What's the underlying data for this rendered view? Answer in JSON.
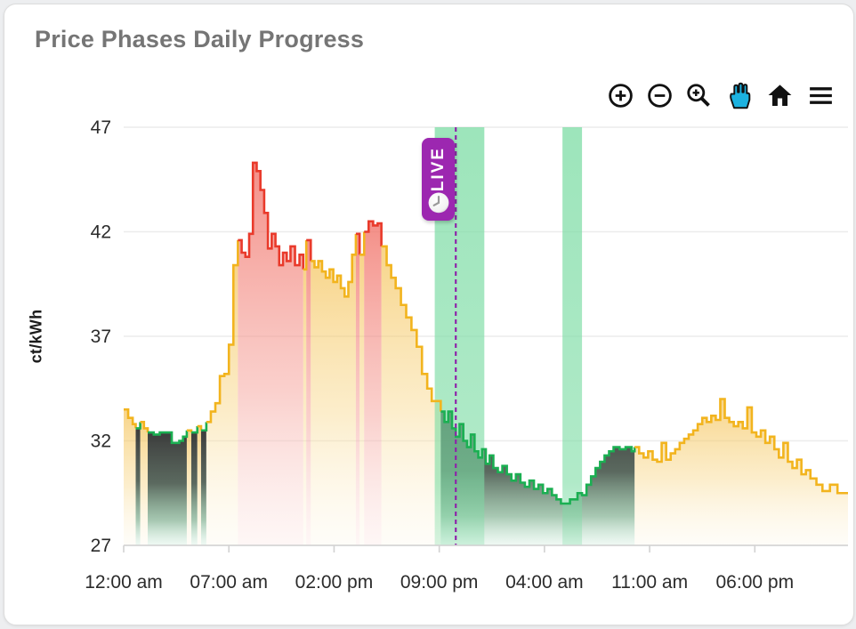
{
  "card": {
    "title": "Price Phases Daily Progress"
  },
  "toolbar": {
    "buttons": [
      {
        "name": "zoom-in"
      },
      {
        "name": "zoom-out"
      },
      {
        "name": "box-zoom"
      },
      {
        "name": "pan",
        "active": true
      },
      {
        "name": "reset-home"
      },
      {
        "name": "menu"
      }
    ]
  },
  "colors": {
    "title_gray": "#757575",
    "normal": "#F2B41E",
    "expensive": "#E93A2B",
    "cheap": "#1BAF52",
    "band_green": "#7CDCA4",
    "live_line": "#8E24AA",
    "badge_purple": "#9C27B0",
    "icon_black": "#111111",
    "pan_active_blue": "#1CB2E0",
    "grid": "#ececec",
    "axis": "#d2d2d2",
    "tick_text": "#2b2b2b"
  },
  "live": {
    "label": "LIVE",
    "t": 22.1
  },
  "chart_data": {
    "type": "area",
    "subtype": "step-phase-area",
    "title": "Price Phases Daily Progress",
    "xlabel": "",
    "ylabel": "ct/kWh",
    "ylim": [
      27,
      47
    ],
    "xlim_hours": [
      0,
      48.2
    ],
    "grid": true,
    "legend": "none",
    "y_ticks": [
      47,
      42,
      37,
      32,
      27
    ],
    "x_ticks": [
      {
        "t": 0,
        "label": "12:00 am"
      },
      {
        "t": 7,
        "label": "07:00 am"
      },
      {
        "t": 14,
        "label": "02:00 pm"
      },
      {
        "t": 21,
        "label": "09:00 pm"
      },
      {
        "t": 28,
        "label": "04:00 am"
      },
      {
        "t": 35,
        "label": "11:00 am"
      },
      {
        "t": 42,
        "label": "06:00 pm"
      }
    ],
    "phases": {
      "n": "normal",
      "e": "expensive",
      "c": "cheap"
    },
    "highlight_windows_hours": [
      {
        "start": 20.7,
        "end": 24.0
      },
      {
        "start": 29.2,
        "end": 30.5
      }
    ],
    "series_units": "[hour_of_window, ct_per_kWh, phase]",
    "series": [
      [
        0.0,
        33.5,
        "n"
      ],
      [
        0.3,
        33.1,
        "n"
      ],
      [
        0.6,
        32.8,
        "n"
      ],
      [
        0.8,
        32.6,
        "c"
      ],
      [
        1.1,
        32.9,
        "n"
      ],
      [
        1.35,
        32.6,
        "n"
      ],
      [
        1.6,
        32.4,
        "c"
      ],
      [
        2.0,
        32.3,
        "c"
      ],
      [
        2.4,
        32.4,
        "c"
      ],
      [
        2.8,
        32.4,
        "c"
      ],
      [
        3.2,
        31.9,
        "c"
      ],
      [
        3.7,
        32.0,
        "c"
      ],
      [
        3.95,
        32.2,
        "c"
      ],
      [
        4.2,
        32.5,
        "n"
      ],
      [
        4.5,
        32.4,
        "c"
      ],
      [
        4.9,
        32.7,
        "n"
      ],
      [
        5.15,
        32.5,
        "c"
      ],
      [
        5.5,
        32.9,
        "n"
      ],
      [
        5.8,
        33.4,
        "n"
      ],
      [
        6.1,
        33.8,
        "n"
      ],
      [
        6.4,
        35.1,
        "n"
      ],
      [
        6.7,
        35.2,
        "n"
      ],
      [
        7.0,
        36.6,
        "n"
      ],
      [
        7.3,
        40.4,
        "n"
      ],
      [
        7.6,
        41.6,
        "e"
      ],
      [
        7.85,
        41.0,
        "e"
      ],
      [
        8.1,
        40.8,
        "e"
      ],
      [
        8.35,
        41.9,
        "e"
      ],
      [
        8.6,
        45.3,
        "e"
      ],
      [
        8.85,
        44.9,
        "e"
      ],
      [
        9.1,
        44.0,
        "e"
      ],
      [
        9.35,
        42.9,
        "e"
      ],
      [
        9.6,
        41.2,
        "e"
      ],
      [
        9.85,
        41.9,
        "e"
      ],
      [
        10.1,
        41.3,
        "e"
      ],
      [
        10.35,
        40.4,
        "e"
      ],
      [
        10.6,
        41.0,
        "e"
      ],
      [
        10.85,
        40.6,
        "e"
      ],
      [
        11.1,
        41.3,
        "e"
      ],
      [
        11.4,
        40.4,
        "e"
      ],
      [
        11.7,
        40.9,
        "e"
      ],
      [
        11.95,
        40.2,
        "n"
      ],
      [
        12.15,
        41.6,
        "e"
      ],
      [
        12.45,
        40.6,
        "n"
      ],
      [
        12.7,
        40.3,
        "n"
      ],
      [
        12.95,
        40.6,
        "n"
      ],
      [
        13.2,
        40.1,
        "n"
      ],
      [
        13.45,
        39.8,
        "n"
      ],
      [
        13.7,
        40.2,
        "n"
      ],
      [
        13.95,
        39.6,
        "n"
      ],
      [
        14.2,
        39.9,
        "n"
      ],
      [
        14.45,
        39.3,
        "n"
      ],
      [
        14.7,
        38.9,
        "n"
      ],
      [
        14.95,
        39.6,
        "n"
      ],
      [
        15.2,
        40.9,
        "n"
      ],
      [
        15.45,
        41.9,
        "e"
      ],
      [
        15.7,
        40.9,
        "n"
      ],
      [
        16.0,
        42.0,
        "e"
      ],
      [
        16.3,
        42.5,
        "e"
      ],
      [
        16.6,
        42.3,
        "e"
      ],
      [
        16.9,
        42.4,
        "e"
      ],
      [
        17.15,
        41.3,
        "n"
      ],
      [
        17.5,
        40.4,
        "n"
      ],
      [
        17.8,
        39.8,
        "n"
      ],
      [
        18.1,
        39.3,
        "n"
      ],
      [
        18.45,
        38.5,
        "n"
      ],
      [
        18.8,
        37.9,
        "n"
      ],
      [
        19.15,
        37.3,
        "n"
      ],
      [
        19.5,
        36.5,
        "n"
      ],
      [
        19.85,
        35.2,
        "n"
      ],
      [
        20.2,
        34.5,
        "n"
      ],
      [
        20.5,
        33.9,
        "n"
      ],
      [
        21.1,
        33.4,
        "c"
      ],
      [
        21.35,
        32.9,
        "c"
      ],
      [
        21.6,
        33.4,
        "c"
      ],
      [
        21.85,
        32.6,
        "c"
      ],
      [
        22.1,
        32.2,
        "c"
      ],
      [
        22.35,
        32.8,
        "c"
      ],
      [
        22.6,
        32.0,
        "c"
      ],
      [
        22.85,
        31.7,
        "c"
      ],
      [
        23.1,
        32.3,
        "c"
      ],
      [
        23.35,
        31.5,
        "c"
      ],
      [
        23.6,
        31.2,
        "c"
      ],
      [
        23.85,
        31.6,
        "c"
      ],
      [
        24.1,
        30.9,
        "c"
      ],
      [
        24.35,
        31.3,
        "c"
      ],
      [
        24.6,
        30.7,
        "c"
      ],
      [
        24.9,
        30.5,
        "c"
      ],
      [
        25.2,
        30.8,
        "c"
      ],
      [
        25.5,
        30.4,
        "c"
      ],
      [
        25.8,
        30.1,
        "c"
      ],
      [
        26.1,
        30.4,
        "c"
      ],
      [
        26.4,
        30.0,
        "c"
      ],
      [
        26.7,
        29.8,
        "c"
      ],
      [
        27.0,
        30.1,
        "c"
      ],
      [
        27.3,
        29.7,
        "c"
      ],
      [
        27.6,
        29.9,
        "c"
      ],
      [
        27.9,
        29.5,
        "c"
      ],
      [
        28.2,
        29.7,
        "c"
      ],
      [
        28.5,
        29.4,
        "c"
      ],
      [
        28.8,
        29.2,
        "c"
      ],
      [
        29.1,
        29.0,
        "c"
      ],
      [
        29.7,
        29.2,
        "c"
      ],
      [
        30.2,
        29.5,
        "c"
      ],
      [
        30.5,
        29.4,
        "c"
      ],
      [
        30.8,
        29.9,
        "c"
      ],
      [
        31.1,
        30.3,
        "c"
      ],
      [
        31.4,
        30.7,
        "c"
      ],
      [
        31.7,
        31.0,
        "c"
      ],
      [
        32.0,
        31.3,
        "c"
      ],
      [
        32.3,
        31.5,
        "c"
      ],
      [
        32.6,
        31.7,
        "c"
      ],
      [
        33.0,
        31.6,
        "c"
      ],
      [
        33.4,
        31.7,
        "c"
      ],
      [
        33.8,
        31.5,
        "c"
      ],
      [
        34.0,
        31.7,
        "n"
      ],
      [
        34.3,
        31.4,
        "n"
      ],
      [
        34.6,
        31.2,
        "n"
      ],
      [
        34.9,
        31.5,
        "n"
      ],
      [
        35.2,
        31.1,
        "n"
      ],
      [
        35.5,
        31.0,
        "n"
      ],
      [
        35.8,
        31.9,
        "n"
      ],
      [
        36.1,
        31.1,
        "n"
      ],
      [
        36.4,
        31.4,
        "n"
      ],
      [
        36.7,
        31.6,
        "n"
      ],
      [
        37.0,
        31.9,
        "n"
      ],
      [
        37.3,
        32.1,
        "n"
      ],
      [
        37.6,
        32.3,
        "n"
      ],
      [
        37.9,
        32.5,
        "n"
      ],
      [
        38.2,
        32.8,
        "n"
      ],
      [
        38.5,
        33.1,
        "n"
      ],
      [
        38.8,
        32.9,
        "n"
      ],
      [
        39.1,
        33.2,
        "n"
      ],
      [
        39.4,
        33.0,
        "n"
      ],
      [
        39.7,
        34.0,
        "n"
      ],
      [
        40.0,
        33.1,
        "n"
      ],
      [
        40.3,
        32.9,
        "n"
      ],
      [
        40.6,
        32.7,
        "n"
      ],
      [
        40.9,
        32.9,
        "n"
      ],
      [
        41.2,
        32.6,
        "n"
      ],
      [
        41.5,
        33.6,
        "n"
      ],
      [
        41.8,
        32.4,
        "n"
      ],
      [
        42.1,
        32.2,
        "n"
      ],
      [
        42.4,
        32.5,
        "n"
      ],
      [
        42.7,
        31.9,
        "n"
      ],
      [
        43.0,
        32.2,
        "n"
      ],
      [
        43.3,
        31.6,
        "n"
      ],
      [
        43.6,
        31.2,
        "n"
      ],
      [
        43.9,
        31.9,
        "n"
      ],
      [
        44.2,
        31.0,
        "n"
      ],
      [
        44.5,
        30.7,
        "n"
      ],
      [
        44.8,
        31.1,
        "n"
      ],
      [
        45.1,
        30.4,
        "n"
      ],
      [
        45.4,
        30.6,
        "n"
      ],
      [
        45.7,
        30.2,
        "n"
      ],
      [
        46.1,
        29.9,
        "n"
      ],
      [
        46.5,
        29.6,
        "n"
      ],
      [
        47.0,
        29.9,
        "n"
      ],
      [
        47.5,
        29.5,
        "n"
      ]
    ]
  }
}
